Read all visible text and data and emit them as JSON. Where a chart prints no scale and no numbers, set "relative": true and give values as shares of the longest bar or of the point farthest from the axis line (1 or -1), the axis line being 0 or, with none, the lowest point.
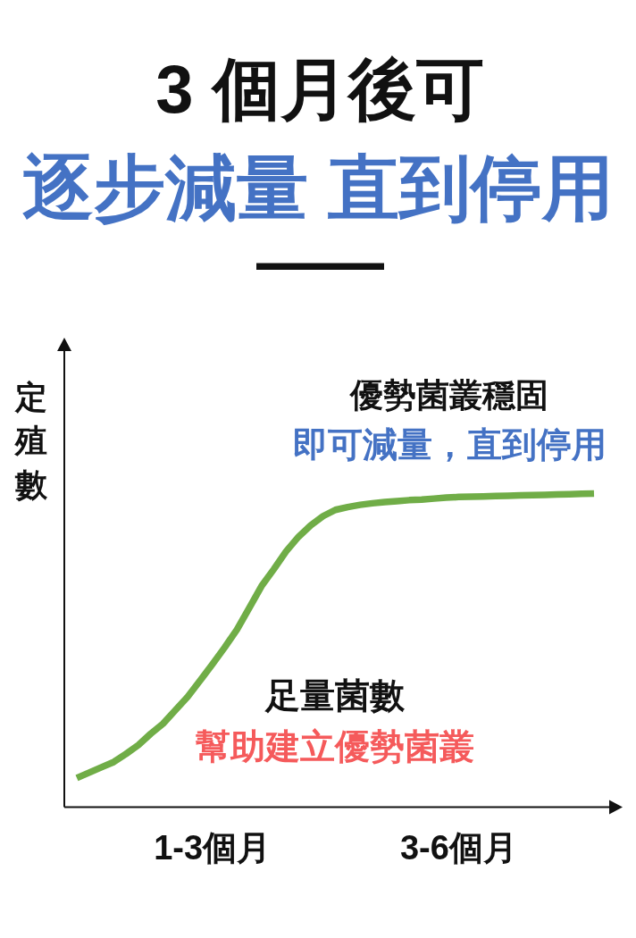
{
  "chart_data": {
    "type": "line",
    "title": "3 個月後可",
    "subtitle": "逐步減量 直到停用",
    "ylabel": "定殖數",
    "categories": [
      null,
      null,
      null,
      null,
      null,
      null,
      null,
      null,
      null,
      null,
      null,
      "1-3個月",
      null,
      null,
      null,
      null,
      null,
      null,
      null,
      null,
      null,
      null,
      null,
      null,
      null,
      null,
      null,
      null,
      null,
      null,
      null,
      "3-6個月",
      null,
      null,
      null,
      null,
      null,
      null,
      null,
      null,
      null,
      null,
      null
    ],
    "series": [
      {
        "color": "#70ad47",
        "values": [
          0.093,
          0.11,
          0.127,
          0.144,
          0.17,
          0.198,
          0.234,
          0.266,
          0.309,
          0.352,
          0.403,
          0.455,
          0.509,
          0.566,
          0.635,
          0.705,
          0.759,
          0.816,
          0.862,
          0.899,
          0.928,
          0.948,
          0.957,
          0.964,
          0.969,
          0.973,
          0.976,
          0.979,
          0.981,
          0.984,
          0.987,
          0.989,
          0.99,
          0.991,
          0.992,
          0.993,
          0.994,
          0.995,
          0.996,
          0.997,
          0.998,
          0.999,
          1
        ]
      }
    ],
    "relative": true,
    "line_style": "solid",
    "annotations": [
      "優勢菌叢穩固",
      "即可減量，直到停用",
      "足量菌數",
      "幫助建立優勢菌叢"
    ]
  }
}
